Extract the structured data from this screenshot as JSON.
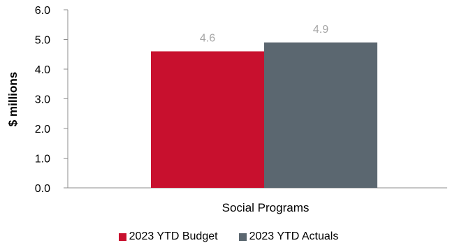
{
  "chart_data": {
    "type": "bar",
    "categories": [
      "Social Programs"
    ],
    "series": [
      {
        "name": "2023 YTD Budget",
        "values": [
          4.6
        ],
        "color": "#c8102e"
      },
      {
        "name": "2023 YTD Actuals",
        "values": [
          4.9
        ],
        "color": "#5b6770"
      }
    ],
    "data_labels": [
      "4.6",
      "4.9"
    ],
    "ylabel": "$ millions",
    "ylim": [
      0,
      6
    ],
    "yticks": [
      "0.0",
      "1.0",
      "2.0",
      "3.0",
      "4.0",
      "5.0",
      "6.0"
    ],
    "grid": false,
    "legend_position": "bottom"
  }
}
